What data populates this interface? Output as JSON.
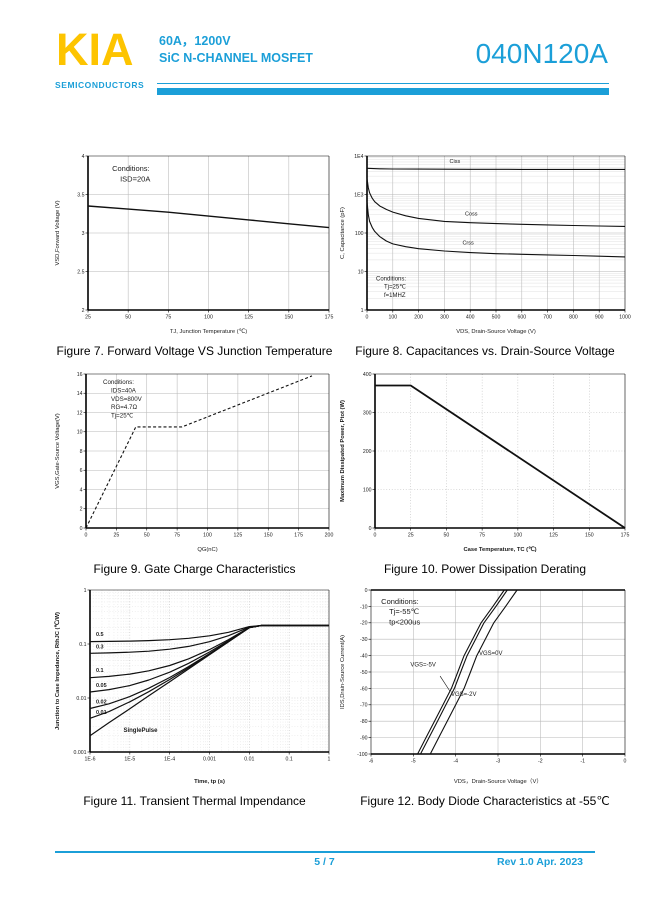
{
  "header": {
    "logo_text": "KIA",
    "logo_sub": "SEMICONDUCTORS",
    "subtitle_line1": "60A，1200V",
    "subtitle_line2": "SiC N-CHANNEL MOSFET",
    "part_number": "040N120A",
    "accent_color": "#1B9FD8",
    "logo_color": "#FDC400"
  },
  "footer": {
    "page_indicator": "5 / 7",
    "revision": "Rev 1.0   Apr. 2023"
  },
  "chart_data": [
    {
      "type": "line",
      "title": "Figure 7. Forward Voltage VS Junction Temperature",
      "xlabel": "TJ, Junction Temperature (℃)",
      "ylabel": "VSD,Forward Voltage (V)",
      "xscale": "linear",
      "yscale": "linear",
      "xlim": [
        25,
        175
      ],
      "ylim": [
        2,
        4
      ],
      "xticks": [
        25,
        50,
        75,
        100,
        125,
        150,
        175
      ],
      "yticks": [
        2,
        2.5,
        3,
        3.5,
        4
      ],
      "grid": "solid",
      "conditions": {
        "lines": [
          "Conditions:",
          "ISD=20A"
        ],
        "fx": 0.1,
        "fy": 0.05,
        "size": 7.5
      },
      "series": [
        {
          "name": "VSD",
          "x": [
            25,
            50,
            75,
            100,
            125,
            150,
            175
          ],
          "y": [
            3.35,
            3.31,
            3.27,
            3.22,
            3.17,
            3.12,
            3.07
          ],
          "w": 1.4
        }
      ]
    },
    {
      "type": "line",
      "title": "Figure 8. Capacitances vs. Drain-Source Voltage",
      "xlabel": "VDS,  Drain-Source Voltage (V)",
      "ylabel": "C, Capacitance (pF)",
      "xscale": "linear",
      "yscale": "log",
      "xlim": [
        0,
        1000
      ],
      "ylim": [
        1,
        10000
      ],
      "xticks": [
        0,
        100,
        200,
        300,
        400,
        500,
        600,
        700,
        800,
        900,
        1000
      ],
      "yticks": [
        {
          "v": 1,
          "l": "1"
        },
        {
          "v": 10,
          "l": "10"
        },
        {
          "v": 100,
          "l": "100"
        },
        {
          "v": 1000,
          "l": "1E3"
        },
        {
          "v": 10000,
          "l": "1E4"
        }
      ],
      "minor_y": true,
      "grid": "solid",
      "conditions": {
        "lines": [
          "Conditions:",
          "Tj=25℃",
          "f=1MHZ"
        ],
        "fx": 0.035,
        "fy": 0.77,
        "size": 6
      },
      "series": [
        {
          "name": "Ciss",
          "x": [
            0,
            50,
            100,
            200,
            300,
            400,
            500,
            600,
            700,
            800,
            900,
            1000
          ],
          "y": [
            4800,
            4650,
            4600,
            4560,
            4540,
            4520,
            4510,
            4500,
            4490,
            4485,
            4480,
            4475
          ],
          "w": 1.1
        },
        {
          "name": "Coss",
          "x": [
            0,
            5,
            10,
            20,
            30,
            50,
            75,
            100,
            150,
            200,
            300,
            400,
            500,
            600,
            700,
            800,
            900,
            1000
          ],
          "y": [
            2600,
            1500,
            1100,
            800,
            650,
            500,
            410,
            350,
            280,
            240,
            200,
            185,
            175,
            168,
            162,
            157,
            152,
            148
          ],
          "w": 1.1
        },
        {
          "name": "Crss",
          "x": [
            0,
            5,
            10,
            20,
            30,
            50,
            75,
            100,
            150,
            200,
            300,
            400,
            500,
            600,
            700,
            800,
            900,
            1000
          ],
          "y": [
            650,
            300,
            200,
            140,
            110,
            80,
            62,
            52,
            44,
            39,
            34,
            31,
            29,
            28,
            27,
            26,
            25,
            24
          ],
          "w": 1.1
        }
      ],
      "labels": [
        {
          "t": "Ciss",
          "fx": 0.32,
          "fy": 0.045,
          "size": 5.5
        },
        {
          "t": "Coss",
          "fx": 0.38,
          "fy": 0.385,
          "size": 5.5
        },
        {
          "t": "Crss",
          "fx": 0.37,
          "fy": 0.575,
          "size": 5.5
        }
      ]
    },
    {
      "type": "line",
      "title": "Figure 9. Gate Charge Characteristics",
      "xlabel": "QG(nC)",
      "ylabel": "VGS,Gate-Source Voltage(V)",
      "xscale": "linear",
      "yscale": "linear",
      "xlim": [
        0,
        200
      ],
      "ylim": [
        0,
        16
      ],
      "xticks": [
        0,
        25,
        50,
        75,
        100,
        125,
        150,
        175,
        200
      ],
      "yticks": [
        0,
        2,
        4,
        6,
        8,
        10,
        12,
        14,
        16
      ],
      "grid": "solid",
      "conditions": {
        "lines": [
          "Conditions:",
          "IDS=40A",
          "VDS=800V",
          "RG=4.7Ω",
          "Tj=25℃"
        ],
        "fx": 0.07,
        "fy": 0.025,
        "size": 6.2
      },
      "series": [
        {
          "name": "VGS",
          "x": [
            0,
            41,
            79,
            186
          ],
          "y": [
            0,
            10.5,
            10.5,
            15.8
          ],
          "w": 1.1,
          "dash": "3,2.2"
        }
      ]
    },
    {
      "type": "line",
      "title": "Figure 10. Power Dissipation Derating",
      "xlabel": "Case Temperature, TC (℃)",
      "ylabel": "Maximum Dissipated Power, Ptot (W)",
      "xscale": "linear",
      "yscale": "linear",
      "xlim": [
        0,
        175
      ],
      "ylim": [
        0,
        400
      ],
      "xticks": [
        0,
        25,
        50,
        75,
        100,
        125,
        150,
        175
      ],
      "yticks": [
        0,
        100,
        200,
        300,
        400
      ],
      "grid": "dotted",
      "axis_bold": true,
      "series": [
        {
          "name": "Ptot",
          "x": [
            0,
            25,
            175
          ],
          "y": [
            370,
            370,
            0
          ],
          "w": 1.8
        }
      ]
    },
    {
      "type": "line",
      "title": "Figure 11. Transient Thermal Impendance",
      "xlabel": "Time, tp (s)",
      "ylabel": "Junction to Case Impedance, RthJC (℃/W)",
      "xscale": "log",
      "yscale": "log",
      "xlim": [
        1e-06,
        1
      ],
      "ylim": [
        0.001,
        1
      ],
      "xticks": [
        {
          "v": 1e-06,
          "l": "1E-6"
        },
        {
          "v": 1e-05,
          "l": "1E-5"
        },
        {
          "v": 0.0001,
          "l": "1E-4"
        },
        {
          "v": 0.001,
          "l": "0.001"
        },
        {
          "v": 0.01,
          "l": "0.01"
        },
        {
          "v": 0.1,
          "l": "0.1"
        },
        {
          "v": 1,
          "l": "1"
        }
      ],
      "yticks": [
        {
          "v": 0.001,
          "l": "0.001"
        },
        {
          "v": 0.01,
          "l": "0.01"
        },
        {
          "v": 0.1,
          "l": "0.1"
        },
        {
          "v": 1,
          "l": "1"
        }
      ],
      "minor_x": true,
      "minor_y": true,
      "grid": "dotted",
      "axis_bold": true,
      "x_shared": [
        1e-06,
        3e-06,
        1e-05,
        3e-05,
        0.0001,
        0.0003,
        0.001,
        0.003,
        0.01,
        0.02,
        0.1,
        1
      ],
      "series": [
        {
          "name": "0.5",
          "y": [
            0.111,
            0.1117,
            0.1132,
            0.1155,
            0.12,
            0.1273,
            0.1416,
            0.1648,
            0.21,
            0.22,
            0.22,
            0.22
          ],
          "w": 1.2
        },
        {
          "name": "0.3",
          "y": [
            0.0674,
            0.0684,
            0.0704,
            0.0737,
            0.08,
            0.0902,
            0.1102,
            0.1427,
            0.206,
            0.22,
            0.22,
            0.22
          ],
          "w": 1.2
        },
        {
          "name": "0.1",
          "y": [
            0.0238,
            0.0251,
            0.0277,
            0.0319,
            0.04,
            0.0531,
            0.0789,
            0.1206,
            0.202,
            0.22,
            0.22,
            0.22
          ],
          "w": 1.2
        },
        {
          "name": "0.05",
          "y": [
            0.0129,
            0.0143,
            0.017,
            0.0215,
            0.03,
            0.0439,
            0.071,
            0.115,
            0.201,
            0.22,
            0.22,
            0.22
          ],
          "w": 1.2
        },
        {
          "name": "0.02",
          "y": [
            0.0064,
            0.0078,
            0.0106,
            0.0152,
            0.024,
            0.0383,
            0.0663,
            0.1117,
            0.2,
            0.22,
            0.22,
            0.22
          ],
          "w": 1.2
        },
        {
          "name": "0.01",
          "y": [
            0.0042,
            0.0056,
            0.0085,
            0.0131,
            0.022,
            0.0365,
            0.0648,
            0.1106,
            0.2,
            0.22,
            0.22,
            0.22
          ],
          "w": 1.2
        },
        {
          "name": "SinglePulse",
          "y": [
            0.002,
            0.0035,
            0.0063,
            0.011,
            0.02,
            0.0346,
            0.0632,
            0.1095,
            0.2,
            0.22,
            0.22,
            0.22
          ],
          "w": 1.2
        }
      ],
      "labels": [
        {
          "t": "0.5",
          "fx": 0.025,
          "fy": 0.285,
          "size": 5.5,
          "bold": true
        },
        {
          "t": "0.3",
          "fx": 0.025,
          "fy": 0.36,
          "size": 5.5,
          "bold": true
        },
        {
          "t": "0.1",
          "fx": 0.025,
          "fy": 0.505,
          "size": 5.5,
          "bold": true
        },
        {
          "t": "0.05",
          "fx": 0.025,
          "fy": 0.598,
          "size": 5.5,
          "bold": true
        },
        {
          "t": "0.02",
          "fx": 0.025,
          "fy": 0.7,
          "size": 5.5,
          "bold": true
        },
        {
          "t": "0.01",
          "fx": 0.025,
          "fy": 0.765,
          "size": 5.5,
          "bold": true
        },
        {
          "t": "SinglePulse",
          "fx": 0.14,
          "fy": 0.875,
          "size": 6,
          "bold": true
        }
      ]
    },
    {
      "type": "line",
      "title": "Figure 12. Body Diode Characteristics at -55℃",
      "xlabel": "VDS，Drain-Source Voltage（V）",
      "ylabel": "IDS,Drain-Source Current(A)",
      "xscale": "linear",
      "yscale": "linear",
      "xlim": [
        -6,
        0
      ],
      "ylim": [
        -100,
        0
      ],
      "xticks": [
        -6,
        -5,
        -4,
        -3,
        -2,
        -1,
        0
      ],
      "yticks": [
        0,
        -10,
        -20,
        -30,
        -40,
        -50,
        -60,
        -70,
        -80,
        -90,
        -100
      ],
      "grid": "solid",
      "thick": [
        "top",
        "bottom"
      ],
      "conditions": {
        "lines": [
          "Conditions:",
          "Tj=-55℃",
          "tp<200us"
        ],
        "fx": 0.04,
        "fy": 0.04,
        "size": 7.5
      },
      "series": [
        {
          "name": "VGS=-5V",
          "x": [
            -4.9,
            -4.7,
            -4.5,
            -4.3,
            -4.1,
            -3.95,
            -3.8,
            -3.6,
            -3.4,
            -3.12,
            -2.85
          ],
          "y": [
            -100,
            -90,
            -80,
            -70,
            -60,
            -50,
            -40,
            -30,
            -20,
            -10,
            0
          ],
          "w": 1.1
        },
        {
          "name": "VGS=0V",
          "x": [
            -4.83,
            -4.63,
            -4.43,
            -4.23,
            -4.03,
            -3.88,
            -3.73,
            -3.53,
            -3.33,
            -3.05,
            -2.78
          ],
          "y": [
            -100,
            -90,
            -80,
            -70,
            -60,
            -50,
            -40,
            -30,
            -20,
            -10,
            0
          ],
          "w": 1.1
        },
        {
          "name": "VGS=-2V",
          "x": [
            -4.6,
            -4.4,
            -4.2,
            -4.0,
            -3.8,
            -3.65,
            -3.5,
            -3.3,
            -3.1,
            -2.82,
            -2.55
          ],
          "y": [
            -100,
            -90,
            -80,
            -70,
            -60,
            -50,
            -40,
            -30,
            -20,
            -10,
            0
          ],
          "w": 1.1
        }
      ],
      "labels": [
        {
          "t": "VGS=-5V",
          "fx": 0.155,
          "fy": 0.465,
          "size": 6
        },
        {
          "t": "VGS=0V",
          "fx": 0.425,
          "fy": 0.395,
          "size": 6
        },
        {
          "t": "VGS=-2V",
          "fx": 0.315,
          "fy": 0.645,
          "size": 6,
          "line": [
            0.31,
            0.615,
            0.272,
            0.525
          ]
        }
      ]
    }
  ]
}
